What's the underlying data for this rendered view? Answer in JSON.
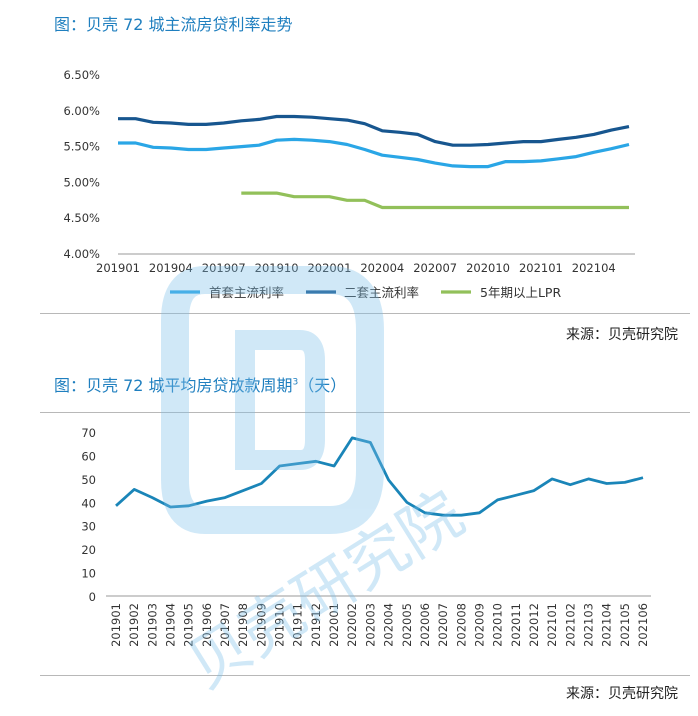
{
  "figure1": {
    "title": "图：贝壳 72 城主流房贷利率走势",
    "source": "来源：贝壳研究院"
  },
  "figure2": {
    "title": "图：贝壳 72 城平均房贷放款周期",
    "title_sup": "3",
    "title_suffix": "（天）",
    "source": "来源：贝壳研究院"
  },
  "watermark_text": "贝壳研究院",
  "colors": {
    "title": "#1f7fbf",
    "first_home": "#2aa6e6",
    "second_home": "#17568f",
    "lpr": "#92c05a",
    "cycle": "#1a85b8",
    "watermark": "#7cc0ea"
  },
  "chart_data": [
    {
      "type": "line",
      "title": "图：贝壳 72 城主流房贷利率走势",
      "x": [
        "201901",
        "201902",
        "201903",
        "201904",
        "201905",
        "201906",
        "201907",
        "201908",
        "201909",
        "201910",
        "201911",
        "201912",
        "202001",
        "202002",
        "202003",
        "202004",
        "202005",
        "202006",
        "202007",
        "202008",
        "202009",
        "202010",
        "202011",
        "202012",
        "202101",
        "202102",
        "202103",
        "202104",
        "202105",
        "202106"
      ],
      "x_tick_labels": [
        "201901",
        "201904",
        "201907",
        "201910",
        "202001",
        "202004",
        "202007",
        "202010",
        "202101",
        "202104"
      ],
      "y_tick_labels": [
        "4.00%",
        "4.50%",
        "5.00%",
        "5.50%",
        "6.00%",
        "6.50%"
      ],
      "ylim": [
        4.0,
        6.5
      ],
      "grid": false,
      "legend": "bottom",
      "series": [
        {
          "name": "首套主流利率",
          "color": "#2aa6e6",
          "values": [
            5.55,
            5.55,
            5.49,
            5.48,
            5.46,
            5.46,
            5.48,
            5.5,
            5.52,
            5.59,
            5.6,
            5.59,
            5.57,
            5.53,
            5.46,
            5.38,
            5.35,
            5.32,
            5.27,
            5.23,
            5.22,
            5.22,
            5.29,
            5.29,
            5.3,
            5.33,
            5.36,
            5.42,
            5.47,
            5.53
          ]
        },
        {
          "name": "二套主流利率",
          "color": "#17568f",
          "values": [
            5.89,
            5.89,
            5.84,
            5.83,
            5.81,
            5.81,
            5.83,
            5.86,
            5.88,
            5.92,
            5.92,
            5.91,
            5.89,
            5.87,
            5.82,
            5.72,
            5.7,
            5.67,
            5.57,
            5.52,
            5.52,
            5.53,
            5.55,
            5.57,
            5.57,
            5.6,
            5.63,
            5.67,
            5.73,
            5.78
          ]
        },
        {
          "name": "5年期以上LPR",
          "color": "#92c05a",
          "values": [
            null,
            null,
            null,
            null,
            null,
            null,
            null,
            4.85,
            4.85,
            4.85,
            4.8,
            4.8,
            4.8,
            4.75,
            4.75,
            4.65,
            4.65,
            4.65,
            4.65,
            4.65,
            4.65,
            4.65,
            4.65,
            4.65,
            4.65,
            4.65,
            4.65,
            4.65,
            4.65,
            4.65
          ]
        }
      ]
    },
    {
      "type": "line",
      "title": "图：贝壳 72 城平均房贷放款周期（天）",
      "x": [
        "201901",
        "201902",
        "201903",
        "201904",
        "201905",
        "201906",
        "201907",
        "201908",
        "201909",
        "201910",
        "201911",
        "201912",
        "202001",
        "202002",
        "202003",
        "202004",
        "202005",
        "202006",
        "202007",
        "202008",
        "202009",
        "202010",
        "202011",
        "202012",
        "202101",
        "202102",
        "202103",
        "202104",
        "202105",
        "202106"
      ],
      "y_tick_labels": [
        "0",
        "10",
        "20",
        "30",
        "40",
        "50",
        "60",
        "70"
      ],
      "ylim": [
        0,
        70
      ],
      "grid": false,
      "legend": "none",
      "series": [
        {
          "name": "平均房贷放款周期",
          "color": "#1a85b8",
          "values": [
            38.5,
            45.5,
            42,
            38,
            38.5,
            40.5,
            42,
            45,
            48,
            55.5,
            56.5,
            57.5,
            55.5,
            67.5,
            65.5,
            49.5,
            40,
            35.5,
            34.5,
            34.5,
            35.5,
            41,
            43,
            45,
            50,
            47.5,
            50,
            48,
            48.5,
            50.5
          ]
        }
      ]
    }
  ]
}
